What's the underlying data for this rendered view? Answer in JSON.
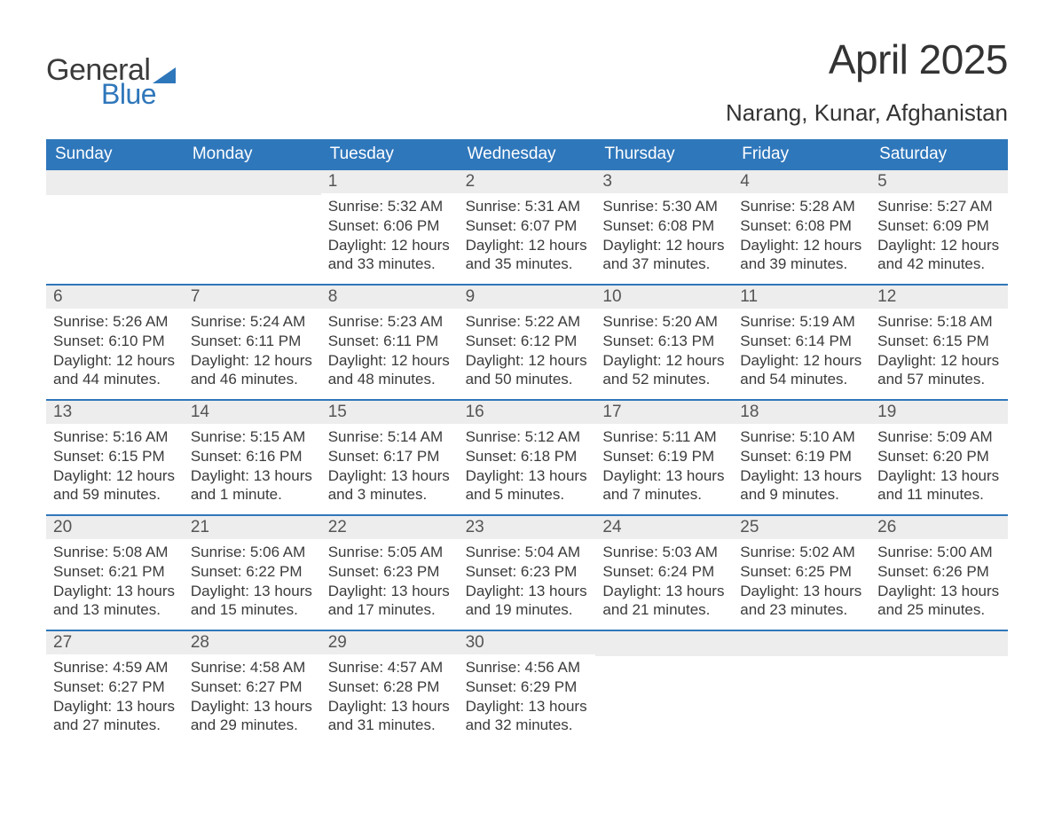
{
  "logo": {
    "word1": "General",
    "word2": "Blue",
    "accent_color": "#2f77bb"
  },
  "title": "April 2025",
  "location": "Narang, Kunar, Afghanistan",
  "weekday_labels": [
    "Sunday",
    "Monday",
    "Tuesday",
    "Wednesday",
    "Thursday",
    "Friday",
    "Saturday"
  ],
  "colors": {
    "header_bg": "#2f77bb",
    "header_text": "#ffffff",
    "daynum_bg": "#ededed",
    "text": "#3b3b3b",
    "background": "#ffffff"
  },
  "fonts": {
    "title_pt": 46,
    "location_pt": 26,
    "weekday_pt": 19,
    "daynum_pt": 19,
    "body_pt": 17
  },
  "weeks": [
    [
      {
        "n": "",
        "sunrise": "",
        "sunset": "",
        "daylight": ""
      },
      {
        "n": "",
        "sunrise": "",
        "sunset": "",
        "daylight": ""
      },
      {
        "n": "1",
        "sunrise": "Sunrise: 5:32 AM",
        "sunset": "Sunset: 6:06 PM",
        "daylight": "Daylight: 12 hours and 33 minutes."
      },
      {
        "n": "2",
        "sunrise": "Sunrise: 5:31 AM",
        "sunset": "Sunset: 6:07 PM",
        "daylight": "Daylight: 12 hours and 35 minutes."
      },
      {
        "n": "3",
        "sunrise": "Sunrise: 5:30 AM",
        "sunset": "Sunset: 6:08 PM",
        "daylight": "Daylight: 12 hours and 37 minutes."
      },
      {
        "n": "4",
        "sunrise": "Sunrise: 5:28 AM",
        "sunset": "Sunset: 6:08 PM",
        "daylight": "Daylight: 12 hours and 39 minutes."
      },
      {
        "n": "5",
        "sunrise": "Sunrise: 5:27 AM",
        "sunset": "Sunset: 6:09 PM",
        "daylight": "Daylight: 12 hours and 42 minutes."
      }
    ],
    [
      {
        "n": "6",
        "sunrise": "Sunrise: 5:26 AM",
        "sunset": "Sunset: 6:10 PM",
        "daylight": "Daylight: 12 hours and 44 minutes."
      },
      {
        "n": "7",
        "sunrise": "Sunrise: 5:24 AM",
        "sunset": "Sunset: 6:11 PM",
        "daylight": "Daylight: 12 hours and 46 minutes."
      },
      {
        "n": "8",
        "sunrise": "Sunrise: 5:23 AM",
        "sunset": "Sunset: 6:11 PM",
        "daylight": "Daylight: 12 hours and 48 minutes."
      },
      {
        "n": "9",
        "sunrise": "Sunrise: 5:22 AM",
        "sunset": "Sunset: 6:12 PM",
        "daylight": "Daylight: 12 hours and 50 minutes."
      },
      {
        "n": "10",
        "sunrise": "Sunrise: 5:20 AM",
        "sunset": "Sunset: 6:13 PM",
        "daylight": "Daylight: 12 hours and 52 minutes."
      },
      {
        "n": "11",
        "sunrise": "Sunrise: 5:19 AM",
        "sunset": "Sunset: 6:14 PM",
        "daylight": "Daylight: 12 hours and 54 minutes."
      },
      {
        "n": "12",
        "sunrise": "Sunrise: 5:18 AM",
        "sunset": "Sunset: 6:15 PM",
        "daylight": "Daylight: 12 hours and 57 minutes."
      }
    ],
    [
      {
        "n": "13",
        "sunrise": "Sunrise: 5:16 AM",
        "sunset": "Sunset: 6:15 PM",
        "daylight": "Daylight: 12 hours and 59 minutes."
      },
      {
        "n": "14",
        "sunrise": "Sunrise: 5:15 AM",
        "sunset": "Sunset: 6:16 PM",
        "daylight": "Daylight: 13 hours and 1 minute."
      },
      {
        "n": "15",
        "sunrise": "Sunrise: 5:14 AM",
        "sunset": "Sunset: 6:17 PM",
        "daylight": "Daylight: 13 hours and 3 minutes."
      },
      {
        "n": "16",
        "sunrise": "Sunrise: 5:12 AM",
        "sunset": "Sunset: 6:18 PM",
        "daylight": "Daylight: 13 hours and 5 minutes."
      },
      {
        "n": "17",
        "sunrise": "Sunrise: 5:11 AM",
        "sunset": "Sunset: 6:19 PM",
        "daylight": "Daylight: 13 hours and 7 minutes."
      },
      {
        "n": "18",
        "sunrise": "Sunrise: 5:10 AM",
        "sunset": "Sunset: 6:19 PM",
        "daylight": "Daylight: 13 hours and 9 minutes."
      },
      {
        "n": "19",
        "sunrise": "Sunrise: 5:09 AM",
        "sunset": "Sunset: 6:20 PM",
        "daylight": "Daylight: 13 hours and 11 minutes."
      }
    ],
    [
      {
        "n": "20",
        "sunrise": "Sunrise: 5:08 AM",
        "sunset": "Sunset: 6:21 PM",
        "daylight": "Daylight: 13 hours and 13 minutes."
      },
      {
        "n": "21",
        "sunrise": "Sunrise: 5:06 AM",
        "sunset": "Sunset: 6:22 PM",
        "daylight": "Daylight: 13 hours and 15 minutes."
      },
      {
        "n": "22",
        "sunrise": "Sunrise: 5:05 AM",
        "sunset": "Sunset: 6:23 PM",
        "daylight": "Daylight: 13 hours and 17 minutes."
      },
      {
        "n": "23",
        "sunrise": "Sunrise: 5:04 AM",
        "sunset": "Sunset: 6:23 PM",
        "daylight": "Daylight: 13 hours and 19 minutes."
      },
      {
        "n": "24",
        "sunrise": "Sunrise: 5:03 AM",
        "sunset": "Sunset: 6:24 PM",
        "daylight": "Daylight: 13 hours and 21 minutes."
      },
      {
        "n": "25",
        "sunrise": "Sunrise: 5:02 AM",
        "sunset": "Sunset: 6:25 PM",
        "daylight": "Daylight: 13 hours and 23 minutes."
      },
      {
        "n": "26",
        "sunrise": "Sunrise: 5:00 AM",
        "sunset": "Sunset: 6:26 PM",
        "daylight": "Daylight: 13 hours and 25 minutes."
      }
    ],
    [
      {
        "n": "27",
        "sunrise": "Sunrise: 4:59 AM",
        "sunset": "Sunset: 6:27 PM",
        "daylight": "Daylight: 13 hours and 27 minutes."
      },
      {
        "n": "28",
        "sunrise": "Sunrise: 4:58 AM",
        "sunset": "Sunset: 6:27 PM",
        "daylight": "Daylight: 13 hours and 29 minutes."
      },
      {
        "n": "29",
        "sunrise": "Sunrise: 4:57 AM",
        "sunset": "Sunset: 6:28 PM",
        "daylight": "Daylight: 13 hours and 31 minutes."
      },
      {
        "n": "30",
        "sunrise": "Sunrise: 4:56 AM",
        "sunset": "Sunset: 6:29 PM",
        "daylight": "Daylight: 13 hours and 32 minutes."
      },
      {
        "n": "",
        "sunrise": "",
        "sunset": "",
        "daylight": ""
      },
      {
        "n": "",
        "sunrise": "",
        "sunset": "",
        "daylight": ""
      },
      {
        "n": "",
        "sunrise": "",
        "sunset": "",
        "daylight": ""
      }
    ]
  ]
}
